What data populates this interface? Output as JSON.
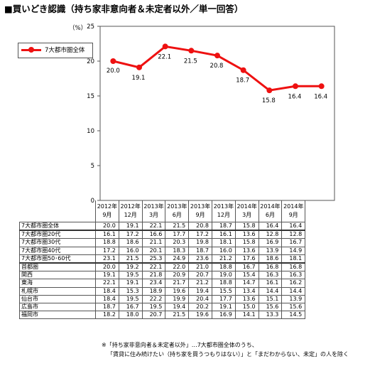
{
  "title": "■買いどき認識（持ち家非意向者＆未定者以外／単一回答）",
  "unit": "（%）",
  "chart_data": {
    "type": "line",
    "ylim": [
      0,
      25
    ],
    "yticks": [
      "0",
      "5",
      "10",
      "15",
      "20",
      "25"
    ],
    "categories": [
      "2012年\n9月",
      "2012年\n12月",
      "2013年\n3月",
      "2013年\n6月",
      "2013年\n9月",
      "2013年\n12月",
      "2014年\n3月",
      "2014年\n6月",
      "2014年\n9月"
    ],
    "series": [
      {
        "name": "7大都市圏全体",
        "values": [
          20.0,
          19.1,
          22.1,
          21.5,
          20.8,
          18.7,
          15.8,
          16.4,
          16.4
        ],
        "labels": [
          "20.0",
          "19.1",
          "22.1",
          "21.5",
          "20.8",
          "18.7",
          "15.8",
          "16.4",
          "16.4"
        ]
      }
    ],
    "color": "#ee1111",
    "legend": "top-left"
  },
  "table": {
    "rows": [
      {
        "label": "7大都市圏全体",
        "values": [
          "20.0",
          "19.1",
          "22.1",
          "21.5",
          "20.8",
          "18.7",
          "15.8",
          "16.4",
          "16.4"
        ]
      },
      {
        "label": "7大都市圏20代",
        "values": [
          "16.1",
          "17.2",
          "16.6",
          "17.7",
          "17.2",
          "16.1",
          "13.6",
          "12.8",
          "12.8"
        ]
      },
      {
        "label": "7大都市圏30代",
        "values": [
          "18.8",
          "18.6",
          "21.1",
          "20.3",
          "19.8",
          "18.1",
          "15.8",
          "16.9",
          "16.7"
        ]
      },
      {
        "label": "7大都市圏40代",
        "values": [
          "17.2",
          "16.0",
          "20.1",
          "18.3",
          "18.7",
          "16.0",
          "13.6",
          "13.9",
          "14.9"
        ]
      },
      {
        "label": "7大都市圏50･60代",
        "values": [
          "23.1",
          "21.5",
          "25.3",
          "24.9",
          "23.6",
          "21.2",
          "17.6",
          "18.6",
          "18.1"
        ]
      },
      {
        "label": "首都圏",
        "values": [
          "20.0",
          "19.2",
          "22.1",
          "22.0",
          "21.0",
          "18.8",
          "16.7",
          "16.8",
          "16.8"
        ]
      },
      {
        "label": "関西",
        "values": [
          "19.1",
          "19.5",
          "21.8",
          "20.9",
          "20.7",
          "19.0",
          "15.4",
          "16.3",
          "16.3"
        ]
      },
      {
        "label": "東海",
        "values": [
          "22.1",
          "19.1",
          "23.4",
          "21.7",
          "21.2",
          "18.8",
          "14.7",
          "16.1",
          "16.2"
        ]
      },
      {
        "label": "札幌市",
        "values": [
          "18.4",
          "15.3",
          "18.9",
          "19.6",
          "19.4",
          "15.5",
          "13.4",
          "14.4",
          "14.4"
        ]
      },
      {
        "label": "仙台市",
        "values": [
          "18.4",
          "19.5",
          "22.2",
          "19.9",
          "20.4",
          "17.7",
          "13.6",
          "15.1",
          "13.9"
        ]
      },
      {
        "label": "広島市",
        "values": [
          "18.7",
          "16.7",
          "19.5",
          "19.4",
          "20.2",
          "19.1",
          "15.0",
          "15.6",
          "15.6"
        ]
      },
      {
        "label": "福岡市",
        "values": [
          "18.2",
          "18.0",
          "20.7",
          "21.5",
          "19.6",
          "16.9",
          "14.1",
          "13.3",
          "14.5"
        ]
      }
    ]
  },
  "notes": [
    "※「持ち家非意向者＆未定者以外」…7大都市圏全体のうち、",
    "「賃貸に住み続けたい（持ち家を買うつもりはない）」と「まだわからない、未定」の人を除く"
  ]
}
